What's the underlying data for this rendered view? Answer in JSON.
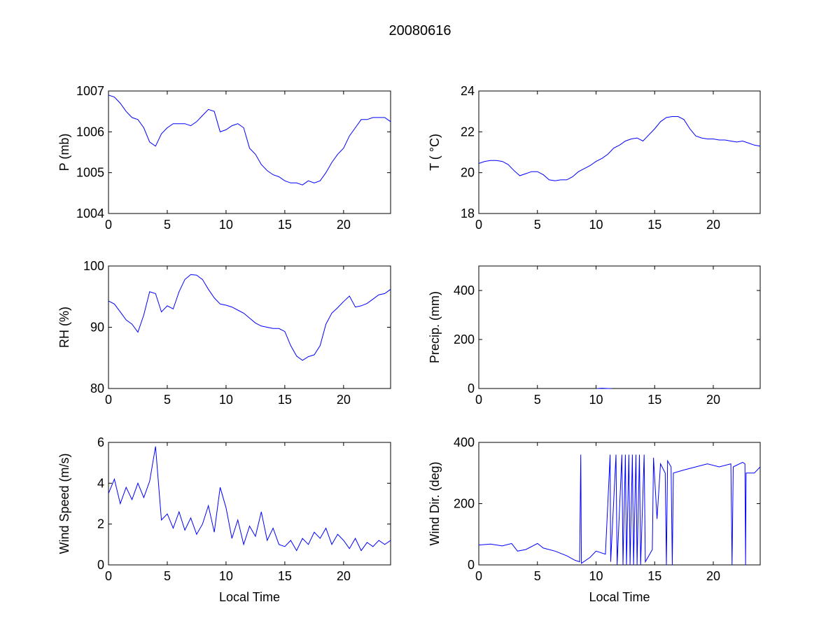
{
  "figure_title": "20080616",
  "colors": {
    "line": "#0000ff",
    "axes": "#000000"
  },
  "chart_data": [
    {
      "type": "line",
      "id": "pressure",
      "xlabel": "",
      "ylabel": "P (mb)",
      "xlim": [
        0,
        24
      ],
      "ylim": [
        1004,
        1007
      ],
      "xticks": [
        "0",
        "5",
        "10",
        "15",
        "20"
      ],
      "yticks": [
        "1004",
        "1005",
        "1006",
        "1007"
      ],
      "x_step": 0.5,
      "values": [
        1006.9,
        1006.85,
        1006.7,
        1006.5,
        1006.35,
        1006.3,
        1006.1,
        1005.75,
        1005.65,
        1005.95,
        1006.1,
        1006.2,
        1006.2,
        1006.2,
        1006.15,
        1006.25,
        1006.4,
        1006.55,
        1006.5,
        1006.0,
        1006.05,
        1006.15,
        1006.2,
        1006.1,
        1005.6,
        1005.45,
        1005.2,
        1005.05,
        1004.95,
        1004.9,
        1004.8,
        1004.75,
        1004.75,
        1004.7,
        1004.8,
        1004.75,
        1004.8,
        1005.0,
        1005.25,
        1005.45,
        1005.6,
        1005.9,
        1006.1,
        1006.3,
        1006.3,
        1006.35,
        1006.35,
        1006.35,
        1006.25
      ]
    },
    {
      "type": "line",
      "id": "temperature",
      "xlabel": "",
      "ylabel": "T ( °C)",
      "xlim": [
        0,
        24
      ],
      "ylim": [
        18,
        24
      ],
      "xticks": [
        "0",
        "5",
        "10",
        "15",
        "20"
      ],
      "yticks": [
        "18",
        "20",
        "22",
        "24"
      ],
      "x_step": 0.5,
      "values": [
        20.45,
        20.55,
        20.6,
        20.6,
        20.55,
        20.4,
        20.1,
        19.85,
        19.95,
        20.05,
        20.05,
        19.9,
        19.65,
        19.6,
        19.65,
        19.65,
        19.8,
        20.05,
        20.2,
        20.35,
        20.55,
        20.7,
        20.9,
        21.2,
        21.35,
        21.55,
        21.65,
        21.7,
        21.55,
        21.85,
        22.15,
        22.5,
        22.7,
        22.75,
        22.75,
        22.6,
        22.15,
        21.8,
        21.7,
        21.65,
        21.65,
        21.6,
        21.6,
        21.55,
        21.5,
        21.55,
        21.45,
        21.35,
        21.3
      ]
    },
    {
      "type": "line",
      "id": "humidity",
      "xlabel": "",
      "ylabel": "RH (%)",
      "xlim": [
        0,
        24
      ],
      "ylim": [
        80,
        100
      ],
      "xticks": [
        "0",
        "5",
        "10",
        "15",
        "20"
      ],
      "yticks": [
        "80",
        "90",
        "100"
      ],
      "x_step": 0.5,
      "values": [
        94.3,
        93.8,
        92.5,
        91.2,
        90.5,
        89.2,
        92,
        95.8,
        95.5,
        92.5,
        93.5,
        93,
        95.8,
        97.8,
        98.6,
        98.5,
        97.8,
        96.2,
        94.8,
        93.8,
        93.6,
        93.3,
        92.8,
        92.3,
        91.5,
        90.7,
        90.2,
        90,
        89.8,
        89.8,
        89.3,
        87,
        85.3,
        84.6,
        85.2,
        85.5,
        87,
        90.5,
        92.3,
        93.2,
        94.2,
        95.1,
        93.3,
        93.5,
        93.9,
        94.6,
        95.3,
        95.5,
        96.2
      ]
    },
    {
      "type": "line",
      "id": "precip",
      "xlabel": "",
      "ylabel": "Precip. (mm)",
      "xlim": [
        0,
        24
      ],
      "ylim": [
        0,
        500
      ],
      "xticks": [
        "0",
        "5",
        "10",
        "15",
        "20"
      ],
      "yticks": [
        "0",
        "200",
        "400"
      ],
      "ytick_values": [
        0,
        200,
        400
      ],
      "points": [
        [
          10.1,
          0
        ],
        [
          10.5,
          1
        ],
        [
          11.0,
          0
        ],
        [
          11.3,
          0
        ]
      ]
    },
    {
      "type": "line",
      "id": "wind-speed",
      "xlabel": "Local Time",
      "ylabel": "Wind Speed (m/s)",
      "xlim": [
        0,
        24
      ],
      "ylim": [
        0,
        6
      ],
      "xticks": [
        "0",
        "5",
        "10",
        "15",
        "20"
      ],
      "yticks": [
        "0",
        "2",
        "4",
        "6"
      ],
      "x_step": 0.5,
      "values": [
        3.5,
        4.2,
        3.0,
        3.8,
        3.2,
        4.0,
        3.3,
        4.1,
        5.8,
        2.2,
        2.5,
        1.8,
        2.6,
        1.7,
        2.3,
        1.5,
        2.0,
        2.9,
        1.6,
        3.8,
        2.8,
        1.3,
        2.2,
        1.0,
        1.9,
        1.4,
        2.6,
        1.2,
        1.8,
        1.0,
        0.9,
        1.2,
        0.7,
        1.3,
        1.0,
        1.6,
        1.3,
        1.8,
        1.0,
        1.5,
        1.2,
        0.8,
        1.3,
        0.7,
        1.1,
        0.9,
        1.2,
        1.0,
        1.2
      ]
    },
    {
      "type": "line",
      "id": "wind-direction",
      "xlabel": "Local Time",
      "ylabel": "Wind Dir. (deg)",
      "xlim": [
        0,
        24
      ],
      "ylim": [
        0,
        400
      ],
      "xticks": [
        "0",
        "5",
        "10",
        "15",
        "20"
      ],
      "yticks": [
        "0",
        "200",
        "400"
      ],
      "points": [
        [
          0,
          65
        ],
        [
          1,
          68
        ],
        [
          2,
          62
        ],
        [
          2.8,
          70
        ],
        [
          3.3,
          45
        ],
        [
          4,
          50
        ],
        [
          5,
          70
        ],
        [
          5.5,
          55
        ],
        [
          6.5,
          45
        ],
        [
          7.5,
          30
        ],
        [
          8.2,
          15
        ],
        [
          8.6,
          10
        ],
        [
          8.7,
          360
        ],
        [
          8.75,
          5
        ],
        [
          9.5,
          25
        ],
        [
          10,
          45
        ],
        [
          10.8,
          35
        ],
        [
          11.2,
          360
        ],
        [
          11.25,
          10
        ],
        [
          11.7,
          360
        ],
        [
          11.8,
          0
        ],
        [
          12.2,
          360
        ],
        [
          12.3,
          0
        ],
        [
          12.5,
          360
        ],
        [
          12.6,
          0
        ],
        [
          12.8,
          360
        ],
        [
          12.9,
          0
        ],
        [
          13.1,
          360
        ],
        [
          13.2,
          0
        ],
        [
          13.4,
          360
        ],
        [
          13.5,
          0
        ],
        [
          13.7,
          360
        ],
        [
          13.8,
          0
        ],
        [
          14.1,
          360
        ],
        [
          14.2,
          10
        ],
        [
          14.8,
          50
        ],
        [
          14.9,
          350
        ],
        [
          15.2,
          150
        ],
        [
          15.5,
          330
        ],
        [
          15.9,
          300
        ],
        [
          16.0,
          0
        ],
        [
          16.1,
          340
        ],
        [
          16.4,
          320
        ],
        [
          16.5,
          0
        ],
        [
          16.6,
          300
        ],
        [
          17.5,
          310
        ],
        [
          18.5,
          320
        ],
        [
          19.5,
          330
        ],
        [
          20.5,
          320
        ],
        [
          21.5,
          330
        ],
        [
          21.6,
          0
        ],
        [
          21.7,
          320
        ],
        [
          22.5,
          335
        ],
        [
          22.7,
          330
        ],
        [
          22.75,
          0
        ],
        [
          22.8,
          300
        ],
        [
          23.5,
          300
        ],
        [
          24,
          320
        ]
      ]
    }
  ]
}
